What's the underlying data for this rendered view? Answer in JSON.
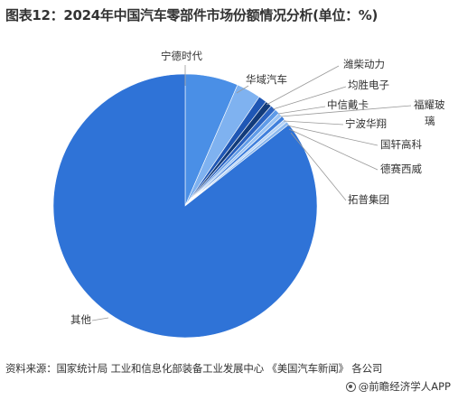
{
  "title": "图表12：2024年中国汽车零部件市场份额情况分析(单位：%)",
  "chart_data": {
    "type": "pie",
    "title": "图表12：2024年中国汽车零部件市场份额情况分析(单位：%)",
    "slices": [
      {
        "name": "宁德时代",
        "value": 6.5,
        "color": "#4a8fe6"
      },
      {
        "name": "华域汽车",
        "value": 3.0,
        "color": "#7fb2f0"
      },
      {
        "name": "潍柴动力",
        "value": 1.0,
        "color": "#1f57b5"
      },
      {
        "name": "均胜电子",
        "value": 0.8,
        "color": "#123b7a"
      },
      {
        "name": "中信戴卡",
        "value": 0.7,
        "color": "#2a62c0"
      },
      {
        "name": "宁波华翔",
        "value": 0.6,
        "color": "#5f9be8"
      },
      {
        "name": "福耀玻璃",
        "value": 0.5,
        "color": "#9cc4f3"
      },
      {
        "name": "国轩高科",
        "value": 0.5,
        "color": "#3f7fdc"
      },
      {
        "name": "德赛西威",
        "value": 0.4,
        "color": "#b6d3f6"
      },
      {
        "name": "拓普集团",
        "value": 0.4,
        "color": "#8ab8ef"
      },
      {
        "name": "其他",
        "value": 85.6,
        "color": "#2f73d7"
      }
    ]
  },
  "labels": {
    "ningde": "宁德时代",
    "huayu": "华域汽车",
    "weichai": "潍柴动力",
    "junsheng": "均胜电子",
    "zhongxin": "中信戴卡",
    "fuyao_1": "福耀玻",
    "fuyao_2": "璃",
    "ningbo": "宁波华翔",
    "guoxuan": "国轩高科",
    "desai": "德赛西威",
    "tuopu": "拓普集团",
    "other": "其他"
  },
  "source": "资料来源：国家统计局 工业和信息化部装备工业发展中心 《美国汽车新闻》 各公司",
  "brand": {
    "text": "@前瞻经济学人APP",
    "icon": "qianzhan-logo-icon"
  }
}
